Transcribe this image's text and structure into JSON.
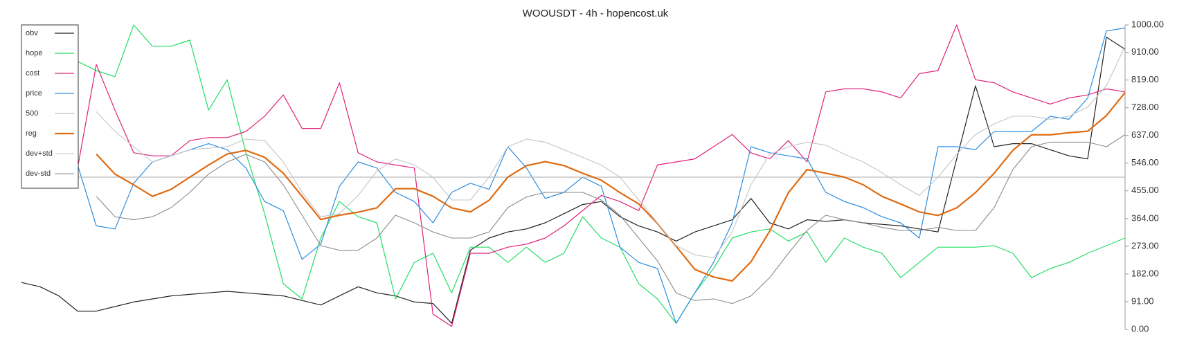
{
  "chart_data": {
    "type": "line",
    "title": "WOOUSDT - 4h - hopencost.uk",
    "ylim": [
      0,
      1000
    ],
    "yticks": [
      {
        "value": 0,
        "label": "0.00"
      },
      {
        "value": 91,
        "label": "91.00"
      },
      {
        "value": 182,
        "label": "182.00"
      },
      {
        "value": 273,
        "label": "273.00"
      },
      {
        "value": 364,
        "label": "364.00"
      },
      {
        "value": 455,
        "label": "455.00"
      },
      {
        "value": 546,
        "label": "546.00"
      },
      {
        "value": 637,
        "label": "637.00"
      },
      {
        "value": 728,
        "label": "728.00"
      },
      {
        "value": 819,
        "label": "819.00"
      },
      {
        "value": 910,
        "label": "910.00"
      },
      {
        "value": 1000,
        "label": "1000.00"
      }
    ],
    "legend": "upper left",
    "series": [
      {
        "name": "obv",
        "color": "#222222",
        "width": 1.2,
        "values": [
          154,
          140,
          110,
          60,
          60,
          75,
          90,
          100,
          110,
          115,
          120,
          125,
          120,
          115,
          110,
          95,
          80,
          110,
          140,
          120,
          110,
          90,
          85,
          20,
          260,
          300,
          320,
          330,
          350,
          380,
          410,
          420,
          370,
          340,
          320,
          290,
          320,
          340,
          360,
          430,
          350,
          330,
          360,
          355,
          360,
          350,
          345,
          340,
          330,
          320,
          560,
          800,
          600,
          610,
          610,
          590,
          570,
          560,
          960,
          920
        ]
      },
      {
        "name": "hope",
        "color": "#22dd66",
        "width": 1.2,
        "values": [
          null,
          null,
          null,
          880,
          850,
          830,
          1000,
          930,
          930,
          950,
          720,
          820,
          580,
          380,
          150,
          100,
          300,
          420,
          370,
          350,
          100,
          220,
          250,
          120,
          270,
          270,
          220,
          270,
          220,
          250,
          370,
          300,
          270,
          150,
          100,
          20,
          120,
          200,
          300,
          320,
          330,
          290,
          320,
          220,
          300,
          270,
          250,
          170,
          220,
          270,
          270,
          270,
          275,
          250,
          170,
          200,
          220,
          250,
          275,
          300
        ]
      },
      {
        "name": "cost",
        "color": "#e0207a",
        "width": 1.2,
        "values": [
          null,
          null,
          null,
          530,
          870,
          720,
          580,
          570,
          570,
          620,
          630,
          630,
          650,
          700,
          770,
          660,
          660,
          810,
          580,
          550,
          540,
          530,
          50,
          10,
          250,
          250,
          270,
          280,
          300,
          340,
          390,
          440,
          420,
          390,
          540,
          550,
          560,
          600,
          640,
          580,
          560,
          620,
          550,
          780,
          790,
          790,
          780,
          760,
          840,
          850,
          1000,
          820,
          810,
          780,
          760,
          740,
          760,
          770,
          790,
          780
        ]
      },
      {
        "name": "price",
        "color": "#2a8ce0",
        "width": 1.2,
        "values": [
          null,
          null,
          null,
          540,
          340,
          330,
          480,
          550,
          570,
          590,
          610,
          590,
          530,
          420,
          390,
          230,
          280,
          470,
          550,
          530,
          450,
          420,
          350,
          450,
          480,
          460,
          600,
          530,
          430,
          450,
          500,
          470,
          270,
          220,
          200,
          20,
          120,
          220,
          350,
          600,
          580,
          570,
          560,
          450,
          420,
          400,
          370,
          350,
          300,
          600,
          600,
          590,
          650,
          650,
          650,
          700,
          690,
          760,
          980,
          990
        ]
      },
      {
        "name": "500",
        "color": "#bbbbbb",
        "width": 1.2,
        "values": [
          500,
          500,
          500,
          500,
          500,
          500,
          500,
          500,
          500,
          500,
          500,
          500,
          500,
          500,
          500,
          500,
          500,
          500,
          500,
          500,
          500,
          500,
          500,
          500,
          500,
          500,
          500,
          500,
          500,
          500,
          500,
          500,
          500,
          500,
          500,
          500,
          500,
          500,
          500,
          500,
          500,
          500,
          500,
          500,
          500,
          500,
          500,
          500,
          500,
          500,
          500,
          500,
          500,
          500,
          500,
          500,
          500,
          500,
          500,
          500
        ]
      },
      {
        "name": "reg",
        "color": "#e06a10",
        "width": 2.2,
        "values": [
          null,
          null,
          null,
          null,
          576,
          510,
          475,
          437,
          460,
          500,
          540,
          576,
          588,
          565,
          513,
          437,
          361,
          375,
          385,
          399,
          462,
          462,
          437,
          399,
          386,
          424,
          500,
          538,
          551,
          538,
          513,
          490,
          449,
          412,
          348,
          273,
          197,
          172,
          159,
          222,
          323,
          449,
          525,
          513,
          500,
          475,
          437,
          412,
          386,
          374,
          399,
          449,
          513,
          588,
          639,
          639,
          646,
          651,
          702,
          778
        ]
      },
      {
        "name": "dev+std",
        "color": "#c4c4c4",
        "width": 1.1,
        "values": [
          null,
          null,
          null,
          null,
          715,
          650,
          600,
          550,
          570,
          590,
          595,
          600,
          625,
          620,
          550,
          450,
          370,
          380,
          440,
          520,
          560,
          540,
          500,
          425,
          425,
          500,
          600,
          625,
          615,
          590,
          565,
          540,
          500,
          425,
          350,
          275,
          245,
          235,
          320,
          475,
          575,
          600,
          615,
          605,
          575,
          550,
          515,
          475,
          440,
          500,
          575,
          640,
          675,
          700,
          700,
          690,
          700,
          730,
          800,
          930
        ]
      },
      {
        "name": "dev-std",
        "color": "#8a8a8a",
        "width": 1.1,
        "values": [
          null,
          null,
          null,
          null,
          437,
          370,
          360,
          370,
          400,
          450,
          510,
          550,
          575,
          550,
          475,
          375,
          275,
          260,
          260,
          300,
          375,
          350,
          320,
          300,
          300,
          320,
          400,
          435,
          450,
          450,
          450,
          425,
          375,
          300,
          225,
          120,
          95,
          100,
          85,
          110,
          170,
          250,
          325,
          375,
          360,
          350,
          335,
          325,
          325,
          335,
          325,
          325,
          400,
          525,
          600,
          615,
          615,
          615,
          600,
          640
        ]
      }
    ]
  }
}
